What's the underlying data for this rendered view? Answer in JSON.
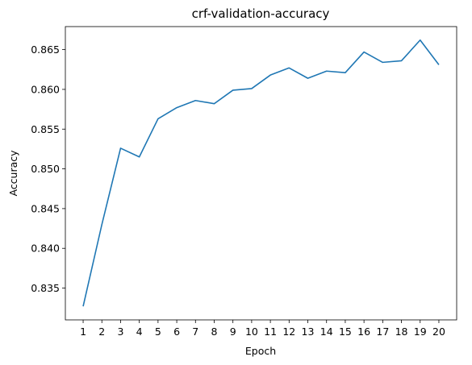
{
  "chart_data": {
    "type": "line",
    "title": "crf-validation-accuracy",
    "xlabel": "Epoch",
    "ylabel": "Accuracy",
    "x": [
      1,
      2,
      3,
      4,
      5,
      6,
      7,
      8,
      9,
      10,
      11,
      12,
      13,
      14,
      15,
      16,
      17,
      18,
      19,
      20
    ],
    "xticks": [
      "1",
      "2",
      "3",
      "4",
      "5",
      "6",
      "7",
      "8",
      "9",
      "10",
      "11",
      "12",
      "13",
      "14",
      "15",
      "16",
      "17",
      "18",
      "19",
      "20"
    ],
    "yticks": [
      "0.835",
      "0.840",
      "0.845",
      "0.850",
      "0.855",
      "0.860",
      "0.865"
    ],
    "ytick_values": [
      0.835,
      0.84,
      0.845,
      0.85,
      0.855,
      0.86,
      0.865
    ],
    "series": [
      {
        "values": [
          0.8327,
          0.843,
          0.8526,
          0.8515,
          0.8563,
          0.8577,
          0.8586,
          0.8582,
          0.8599,
          0.8601,
          0.8618,
          0.8627,
          0.8614,
          0.8623,
          0.8621,
          0.8647,
          0.8634,
          0.8636,
          0.8662,
          0.8631
        ],
        "color": "#1f77b4"
      }
    ],
    "xlim": [
      0.05,
      20.95
    ],
    "ylim": [
      0.831,
      0.8679
    ],
    "grid": false,
    "legend": "none"
  }
}
